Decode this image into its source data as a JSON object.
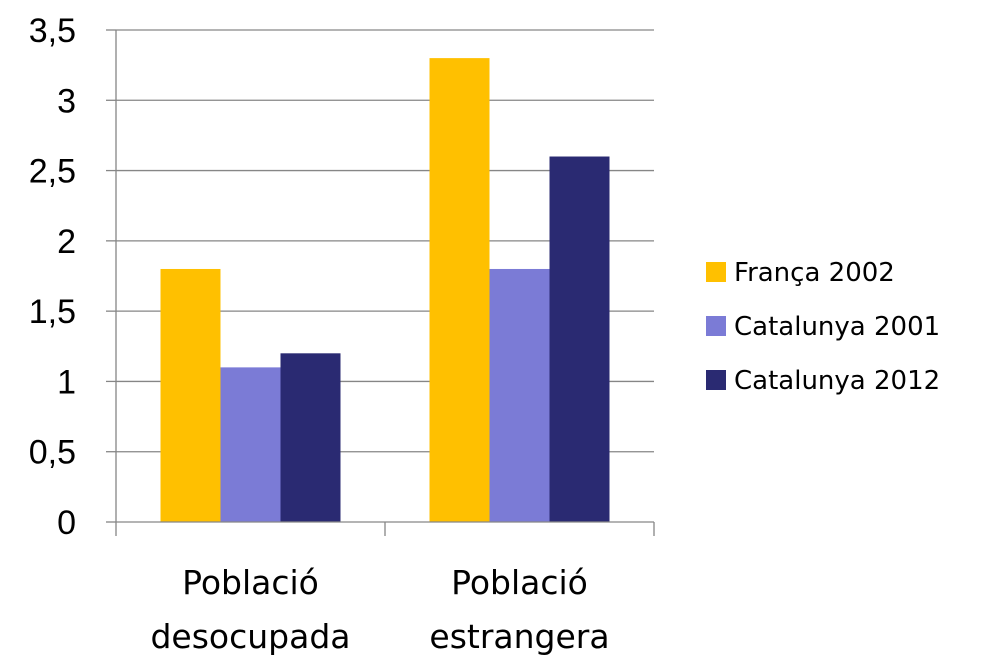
{
  "chart_data": {
    "type": "bar",
    "categories": [
      [
        "Població",
        "desocupada"
      ],
      [
        "Població",
        "estrangera"
      ]
    ],
    "series": [
      {
        "name": "França 2002",
        "values": [
          1.8,
          3.3
        ],
        "color": "#FFC000"
      },
      {
        "name": "Catalunya 2001",
        "values": [
          1.1,
          1.8
        ],
        "color": "#7B7BD6"
      },
      {
        "name": "Catalunya 2012",
        "values": [
          1.2,
          2.6
        ],
        "color": "#2A2A72"
      }
    ],
    "ylim": [
      0,
      3.5
    ],
    "yticks": [
      "0",
      "0,5",
      "1",
      "1,5",
      "2",
      "2,5",
      "3",
      "3,5"
    ],
    "grid": true,
    "legend_position": "right",
    "title": "",
    "xlabel": "",
    "ylabel": ""
  }
}
